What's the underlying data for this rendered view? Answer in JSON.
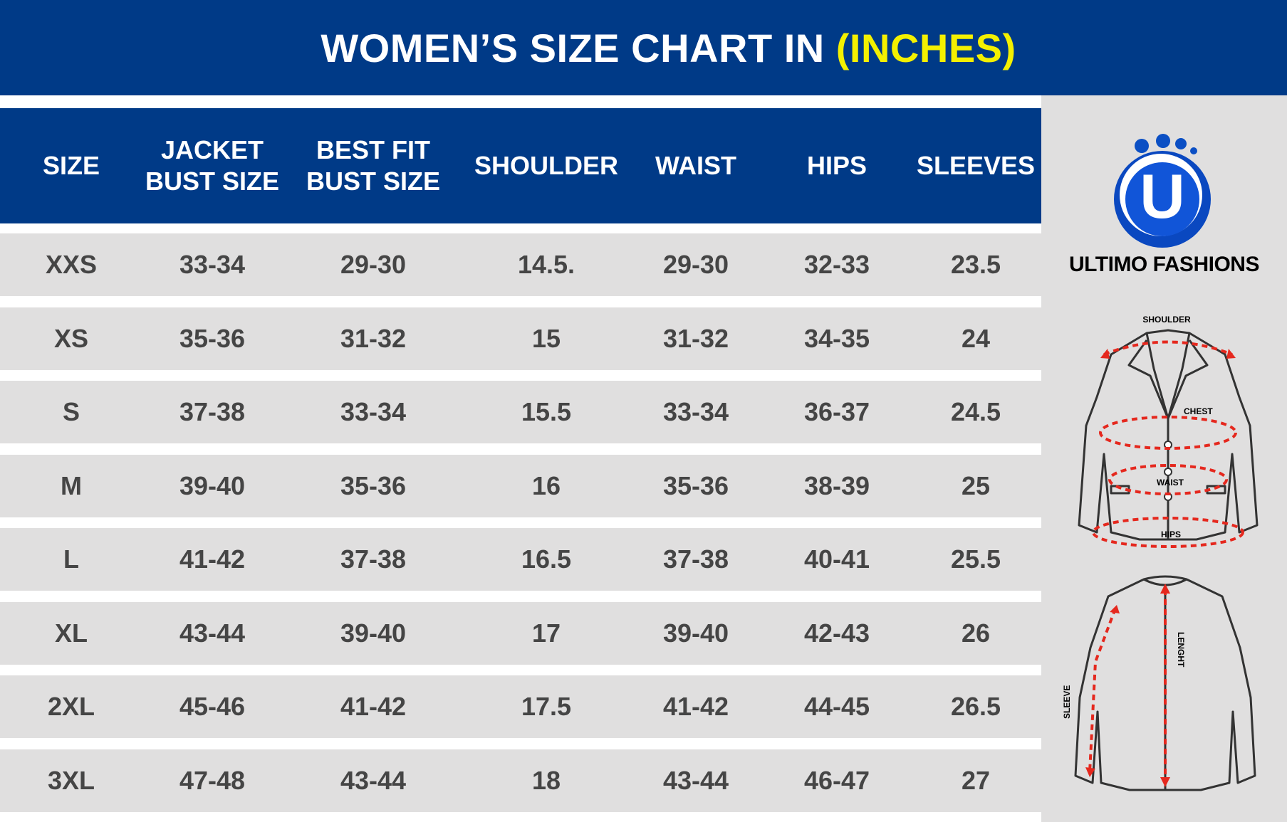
{
  "banner": {
    "title_main": "WOMEN’S SIZE CHART IN ",
    "title_highlight": "(INCHES)"
  },
  "table": {
    "headers": [
      "SIZE",
      "JACKET\nBUST SIZE",
      "BEST FIT\nBUST SIZE",
      "SHOULDER",
      "WAIST",
      "HIPS",
      "SLEEVES"
    ],
    "rows": [
      [
        "XXS",
        "33-34",
        "29-30",
        "14.5.",
        "29-30",
        "32-33",
        "23.5"
      ],
      [
        "XS",
        "35-36",
        "31-32",
        "15",
        "31-32",
        "34-35",
        "24"
      ],
      [
        "S",
        "37-38",
        "33-34",
        "15.5",
        "33-34",
        "36-37",
        "24.5"
      ],
      [
        "M",
        "39-40",
        "35-36",
        "16",
        "35-36",
        "38-39",
        "25"
      ],
      [
        "L",
        "41-42",
        "37-38",
        "16.5",
        "37-38",
        "40-41",
        "25.5"
      ],
      [
        "XL",
        "43-44",
        "39-40",
        "17",
        "39-40",
        "42-43",
        "26"
      ],
      [
        "2XL",
        "45-46",
        "41-42",
        "17.5",
        "41-42",
        "44-45",
        "26.5"
      ],
      [
        "3XL",
        "47-48",
        "43-44",
        "18",
        "43-44",
        "46-47",
        "27"
      ]
    ]
  },
  "brand": {
    "name": "ULTIMO FASHIONS",
    "logo_letter": "U"
  },
  "diagram": {
    "front_labels": {
      "shoulder": "SHOULDER",
      "chest": "CHEST",
      "waist": "WAIST",
      "hips": "HIPS"
    },
    "back_labels": {
      "sleeve": "SLEEVE",
      "length": "LENGHT"
    }
  },
  "colors": {
    "banner": "#003a87",
    "highlight": "#f4f000",
    "row_bg": "#e0dfdf",
    "cell_text": "#454545",
    "measure_line": "#e5281e"
  }
}
